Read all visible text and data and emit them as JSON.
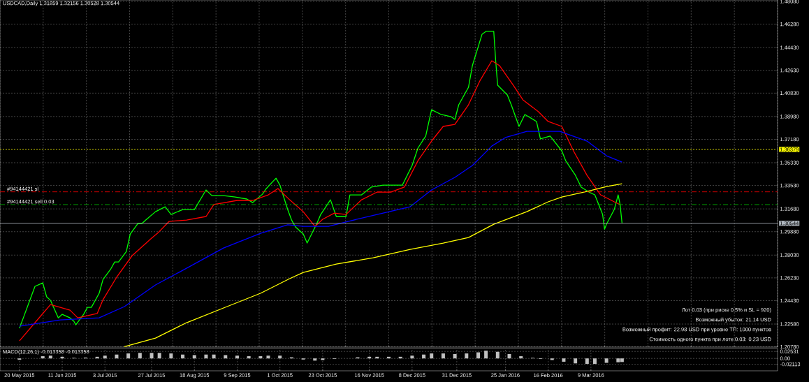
{
  "chart_data": [
    {
      "type": "line",
      "title": "USDCAD,Daily  1.31859 1.32156 1.30528 1.30544",
      "grid": true,
      "tick_labels": "y",
      "xlim": [
        "2015-05-10",
        "2016-06-13"
      ],
      "ylim": [
        1.2076,
        1.4819
      ],
      "yticks": [
        {
          "value": 1.4808,
          "label": "1.48080"
        },
        {
          "value": 1.4628,
          "label": "1.46280"
        },
        {
          "value": 1.4443,
          "label": "1.44430"
        },
        {
          "value": 1.4263,
          "label": "1.42630"
        },
        {
          "value": 1.4083,
          "label": "1.40830"
        },
        {
          "value": 1.3898,
          "label": "1.38980"
        },
        {
          "value": 1.3718,
          "label": "1.37180"
        },
        {
          "value": 1.3533,
          "label": "1.35330"
        },
        {
          "value": 1.3353,
          "label": "1.33530"
        },
        {
          "value": 1.3168,
          "label": "1.31680"
        },
        {
          "value": 1.2988,
          "label": "1.29880"
        },
        {
          "value": 1.2803,
          "label": "1.28030"
        },
        {
          "value": 1.2623,
          "label": "1.26230"
        },
        {
          "value": 1.2443,
          "label": "1.24430"
        },
        {
          "value": 1.2258,
          "label": "1.22580"
        },
        {
          "value": 1.2078,
          "label": "1.20780"
        }
      ],
      "series": [
        {
          "color": "#00ff00",
          "x": [
            "2015-05-20",
            "2015-05-22",
            "2015-05-26",
            "2015-05-28",
            "2015-06-01",
            "2015-06-03",
            "2015-06-05",
            "2015-06-09",
            "2015-06-11",
            "2015-06-15",
            "2015-06-17",
            "2015-06-18",
            "2015-06-22",
            "2015-06-24",
            "2015-06-26",
            "2015-06-30",
            "2015-07-02",
            "2015-07-06",
            "2015-07-08",
            "2015-07-10",
            "2015-07-14",
            "2015-07-16",
            "2015-07-20",
            "2015-07-22",
            "2015-07-24",
            "2015-07-29",
            "2015-08-03",
            "2015-08-06",
            "2015-08-12",
            "2015-08-18",
            "2015-08-24",
            "2015-08-27",
            "2015-09-02",
            "2015-09-08",
            "2015-09-14",
            "2015-09-17",
            "2015-09-22",
            "2015-09-24",
            "2015-09-29",
            "2015-10-01",
            "2015-10-05",
            "2015-10-07",
            "2015-10-09",
            "2015-10-13",
            "2015-10-15",
            "2015-10-20",
            "2015-10-22",
            "2015-10-27",
            "2015-10-30",
            "2015-11-04",
            "2015-11-06",
            "2015-11-12",
            "2015-11-17",
            "2015-11-23",
            "2015-11-27",
            "2015-12-03",
            "2015-12-08",
            "2015-12-11",
            "2015-12-15",
            "2015-12-18",
            "2015-12-23",
            "2015-12-28",
            "2015-12-30",
            "2016-01-01",
            "2016-01-06",
            "2016-01-08",
            "2016-01-13",
            "2016-01-15",
            "2016-01-19",
            "2016-01-20",
            "2016-01-21",
            "2016-01-26",
            "2016-01-28",
            "2016-02-01",
            "2016-02-04",
            "2016-02-10",
            "2016-02-12",
            "2016-02-17",
            "2016-02-23",
            "2016-02-25",
            "2016-03-01",
            "2016-03-04",
            "2016-03-08",
            "2016-03-11",
            "2016-03-15",
            "2016-03-16",
            "2016-03-17",
            "2016-03-21",
            "2016-03-23",
            "2016-03-24",
            "2016-03-25"
          ],
          "values": [
            1.2225,
            1.2307,
            1.2473,
            1.2556,
            1.2583,
            1.2473,
            1.2445,
            1.2307,
            1.2335,
            1.2307,
            1.228,
            1.2252,
            1.2335,
            1.239,
            1.239,
            1.2501,
            1.2611,
            1.2694,
            1.2749,
            1.2749,
            1.2832,
            1.297,
            1.3053,
            1.3053,
            1.308,
            1.3146,
            1.3185,
            1.3124,
            1.3163,
            1.3163,
            1.3318,
            1.3273,
            1.3273,
            1.3262,
            1.3246,
            1.3218,
            1.3284,
            1.3329,
            1.3411,
            1.3356,
            1.3163,
            1.308,
            1.3025,
            1.297,
            1.2898,
            1.3053,
            1.3124,
            1.324,
            1.3108,
            1.3108,
            1.3279,
            1.3279,
            1.334,
            1.3356,
            1.3356,
            1.3356,
            1.3511,
            1.3649,
            1.3743,
            1.3952,
            1.3914,
            1.3897,
            1.3875,
            1.3991,
            1.4129,
            1.43,
            1.4549,
            1.4571,
            1.4571,
            1.4339,
            1.4146,
            1.4068,
            1.3991,
            1.382,
            1.3914,
            1.3859,
            1.3721,
            1.3743,
            1.3627,
            1.3549,
            1.3434,
            1.334,
            1.3301,
            1.3279,
            1.3124,
            1.3008,
            1.3047,
            1.3163,
            1.3279,
            1.3202,
            1.3054
          ]
        },
        {
          "color": "#ff0000",
          "x": [
            "2015-05-20",
            "2015-06-01",
            "2015-06-05",
            "2015-06-15",
            "2015-06-19",
            "2015-06-29",
            "2015-07-02",
            "2015-07-09",
            "2015-07-17",
            "2015-07-27",
            "2015-07-30",
            "2015-08-05",
            "2015-08-14",
            "2015-08-24",
            "2015-08-28",
            "2015-09-09",
            "2015-09-17",
            "2015-09-25",
            "2015-09-30",
            "2015-10-06",
            "2015-10-13",
            "2015-10-19",
            "2015-10-23",
            "2015-10-29",
            "2015-11-04",
            "2015-11-12",
            "2015-11-20",
            "2015-11-27",
            "2015-12-04",
            "2015-12-11",
            "2015-12-18",
            "2015-12-24",
            "2015-12-30",
            "2016-01-06",
            "2016-01-12",
            "2016-01-18",
            "2016-01-22",
            "2016-01-29",
            "2016-02-03",
            "2016-02-11",
            "2016-02-16",
            "2016-02-23",
            "2016-02-29",
            "2016-03-07",
            "2016-03-14",
            "2016-03-21",
            "2016-03-24"
          ],
          "values": [
            1.2125,
            1.2341,
            1.2412,
            1.2368,
            1.2307,
            1.2341,
            1.2451,
            1.2628,
            1.2799,
            1.2937,
            1.2975,
            1.3069,
            1.308,
            1.3108,
            1.3202,
            1.3235,
            1.3235,
            1.3279,
            1.3329,
            1.324,
            1.3146,
            1.303,
            1.3086,
            1.3135,
            1.3124,
            1.324,
            1.3301,
            1.3301,
            1.334,
            1.3549,
            1.3704,
            1.382,
            1.3836,
            1.3991,
            1.4184,
            1.4339,
            1.43,
            1.4146,
            1.403,
            1.3936,
            1.3859,
            1.382,
            1.3627,
            1.3433,
            1.3279,
            1.3224,
            1.3202
          ]
        },
        {
          "color": "#0000ff",
          "x": [
            "2015-05-20",
            "2015-06-10",
            "2015-06-30",
            "2015-07-13",
            "2015-07-29",
            "2015-08-10",
            "2015-09-02",
            "2015-09-21",
            "2015-10-05",
            "2015-10-13",
            "2015-10-26",
            "2015-11-05",
            "2015-11-20",
            "2015-12-07",
            "2015-12-18",
            "2015-12-30",
            "2016-01-08",
            "2016-01-18",
            "2016-01-25",
            "2016-02-05",
            "2016-02-16",
            "2016-02-22",
            "2016-03-07",
            "2016-03-17",
            "2016-03-25"
          ],
          "values": [
            1.2241,
            1.2291,
            1.2307,
            1.2396,
            1.2567,
            1.2666,
            1.2859,
            1.2975,
            1.3042,
            1.303,
            1.303,
            1.3069,
            1.3124,
            1.3185,
            1.3318,
            1.3417,
            1.3511,
            1.3665,
            1.3732,
            1.3781,
            1.3781,
            1.3781,
            1.3704,
            1.3588,
            1.3538
          ]
        },
        {
          "color": "#ffff00",
          "x": [
            "2015-07-13",
            "2015-07-29",
            "2015-08-14",
            "2015-09-02",
            "2015-09-21",
            "2015-10-06",
            "2015-10-13",
            "2015-10-30",
            "2015-11-18",
            "2015-12-07",
            "2015-12-24",
            "2016-01-06",
            "2016-01-19",
            "2016-02-05",
            "2016-02-16",
            "2016-02-23",
            "2016-03-07",
            "2016-03-17",
            "2016-03-25"
          ],
          "values": [
            1.208,
            1.2147,
            1.2269,
            1.2385,
            1.2501,
            1.2617,
            1.2666,
            1.2732,
            1.2782,
            1.2848,
            1.2898,
            1.2942,
            1.3047,
            1.3146,
            1.3224,
            1.3262,
            1.3306,
            1.3345,
            1.3367
          ]
        }
      ],
      "ref_lines": [
        {
          "axis": "y",
          "value": 1.3303,
          "label": "#94144421 sl",
          "color": "#ff0000",
          "line_style": "dashed"
        },
        {
          "axis": "y",
          "value": 1.3202,
          "label": "#94144421 sell 0.03",
          "color": "#00c000",
          "line_style": "dashed"
        },
        {
          "axis": "y",
          "value": 1.36379,
          "label": "1.36379",
          "color": "#ffff00",
          "line_style": "dotted"
        },
        {
          "axis": "y",
          "value": 1.30544,
          "label": "1.30544",
          "color": "#b0b8c0",
          "line_style": "solid"
        }
      ],
      "annotations": [
        "Лот 0.03 (при риске 0.5% и SL = 920)",
        "Возможный убыток: 21.14 USD",
        "Возможный профит: 22.98 USD при уровне ТП: 1000 пунктов",
        "Стоимость одного пункта при лоте 0.03: 0.23 USD"
      ]
    },
    {
      "type": "bar",
      "title": "MACD(12,26,1) -0.013358 -0.013358",
      "grid": true,
      "color": "#c0c0c0",
      "xlim": [
        "2015-05-10",
        "2016-06-13"
      ],
      "xticks": [
        {
          "value": "2015-05-20",
          "label": "20 May 2015"
        },
        {
          "value": "2015-06-11",
          "label": "11 Jun 2015"
        },
        {
          "value": "2015-07-03",
          "label": "3 Jul 2015"
        },
        {
          "value": "2015-07-27",
          "label": "27 Jul 2015"
        },
        {
          "value": "2015-08-18",
          "label": "18 Aug 2015"
        },
        {
          "value": "2015-09-09",
          "label": "9 Sep 2015"
        },
        {
          "value": "2015-10-01",
          "label": "1 Oct 2015"
        },
        {
          "value": "2015-10-23",
          "label": "23 Oct 2015"
        },
        {
          "value": "2015-11-16",
          "label": "16 Nov 2015"
        },
        {
          "value": "2015-12-08",
          "label": "8 Dec 2015"
        },
        {
          "value": "2015-12-31",
          "label": "31 Dec 2015"
        },
        {
          "value": "2016-01-25",
          "label": "25 Jan 2016"
        },
        {
          "value": "2016-02-16",
          "label": "16 Feb 2016"
        },
        {
          "value": "2016-03-09",
          "label": "9 Mar 2016"
        }
      ],
      "ylim": [
        -0.045,
        0.036
      ],
      "yticks": [
        0.02531,
        {
          "value": 0,
          "label": "0.00"
        },
        -0.02113
      ],
      "x": [
        "2015-05-20",
        "2015-05-26",
        "2015-06-01",
        "2015-06-05",
        "2015-06-11",
        "2015-06-17",
        "2015-06-23",
        "2015-06-29",
        "2015-07-03",
        "2015-07-09",
        "2015-07-15",
        "2015-07-21",
        "2015-07-27",
        "2015-07-31",
        "2015-08-06",
        "2015-08-12",
        "2015-08-18",
        "2015-08-24",
        "2015-08-28",
        "2015-09-03",
        "2015-09-09",
        "2015-09-15",
        "2015-09-21",
        "2015-09-25",
        "2015-10-01",
        "2015-10-07",
        "2015-10-13",
        "2015-10-19",
        "2015-10-23",
        "2015-10-29",
        "2015-11-04",
        "2015-11-10",
        "2015-11-16",
        "2015-11-20",
        "2015-11-26",
        "2015-12-02",
        "2015-12-08",
        "2015-12-14",
        "2015-12-18",
        "2015-12-24",
        "2015-12-30",
        "2016-01-05",
        "2016-01-11",
        "2016-01-15",
        "2016-01-21",
        "2016-01-27",
        "2016-02-02",
        "2016-02-08",
        "2016-02-12",
        "2016-02-18",
        "2016-02-24",
        "2016-03-01",
        "2016-03-07",
        "2016-03-11",
        "2016-03-17",
        "2016-03-23",
        "2016-03-25"
      ],
      "values": [
        -0.005,
        0.0,
        0.008,
        0.01,
        0.006,
        0.002,
        0.003,
        0.006,
        0.01,
        0.014,
        0.018,
        0.02,
        0.02,
        0.02,
        0.018,
        0.014,
        0.012,
        0.014,
        0.014,
        0.012,
        0.01,
        0.008,
        0.008,
        0.01,
        0.01,
        0.004,
        -0.004,
        -0.008,
        -0.006,
        -0.002,
        0.0,
        0.004,
        0.006,
        0.006,
        0.006,
        0.006,
        0.01,
        0.014,
        0.018,
        0.018,
        0.016,
        0.018,
        0.022,
        0.028,
        0.024,
        0.016,
        0.008,
        0.002,
        -0.002,
        -0.006,
        -0.012,
        -0.018,
        -0.02,
        -0.02,
        -0.016,
        -0.014,
        -0.013
      ]
    }
  ]
}
